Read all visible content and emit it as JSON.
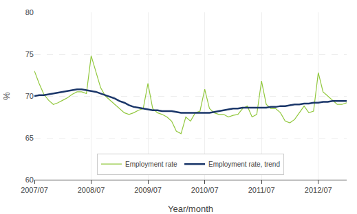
{
  "chart_data": {
    "type": "line",
    "xlabel": "Year/month",
    "ylabel": "%",
    "categories": [
      "2007/07",
      null,
      null,
      null,
      null,
      null,
      null,
      null,
      null,
      null,
      null,
      null,
      "2008/07",
      null,
      null,
      null,
      null,
      null,
      null,
      null,
      null,
      null,
      null,
      null,
      "2009/07",
      null,
      null,
      null,
      null,
      null,
      null,
      null,
      null,
      null,
      null,
      null,
      "2010/07",
      null,
      null,
      null,
      null,
      null,
      null,
      null,
      null,
      null,
      null,
      null,
      "2011/07",
      null,
      null,
      null,
      null,
      null,
      null,
      null,
      null,
      null,
      null,
      null,
      "2012/07",
      null,
      null,
      null,
      null,
      null,
      null
    ],
    "series": [
      {
        "name": "Employment rate",
        "color": "#92c83e",
        "values": [
          73.0,
          71.5,
          70.2,
          69.5,
          69.0,
          69.2,
          69.5,
          69.8,
          70.2,
          70.5,
          70.5,
          70.3,
          74.8,
          73.0,
          71.0,
          70.0,
          69.5,
          69.0,
          68.5,
          68.0,
          67.8,
          68.0,
          68.3,
          68.5,
          71.5,
          68.5,
          68.0,
          67.8,
          67.5,
          67.0,
          65.8,
          65.5,
          67.5,
          67.0,
          68.0,
          68.2,
          70.8,
          68.5,
          68.0,
          67.8,
          67.8,
          67.5,
          67.7,
          67.8,
          68.5,
          68.8,
          67.5,
          67.8,
          71.8,
          69.0,
          68.5,
          68.5,
          68.0,
          67.0,
          66.8,
          67.2,
          68.0,
          68.8,
          68.0,
          68.2,
          72.8,
          70.5,
          70.0,
          69.5,
          69.0,
          69.0,
          69.2
        ]
      },
      {
        "name": "Employment rate, trend",
        "color": "#1a3669",
        "values": [
          70.0,
          70.1,
          70.1,
          70.2,
          70.3,
          70.4,
          70.5,
          70.6,
          70.7,
          70.8,
          70.8,
          70.7,
          70.6,
          70.5,
          70.3,
          70.1,
          69.9,
          69.7,
          69.4,
          69.2,
          68.9,
          68.7,
          68.6,
          68.5,
          68.4,
          68.3,
          68.3,
          68.2,
          68.2,
          68.2,
          68.1,
          68.0,
          68.0,
          68.0,
          68.0,
          68.0,
          68.0,
          68.0,
          68.1,
          68.2,
          68.3,
          68.4,
          68.5,
          68.5,
          68.6,
          68.6,
          68.6,
          68.6,
          68.6,
          68.6,
          68.7,
          68.7,
          68.8,
          68.8,
          68.9,
          69.0,
          69.0,
          69.1,
          69.1,
          69.2,
          69.2,
          69.3,
          69.3,
          69.4,
          69.4,
          69.4,
          69.4
        ]
      }
    ],
    "ylim": [
      60,
      80
    ],
    "yticks": [
      60,
      65,
      70,
      75,
      80
    ],
    "grid": true,
    "legend": "bottom"
  }
}
